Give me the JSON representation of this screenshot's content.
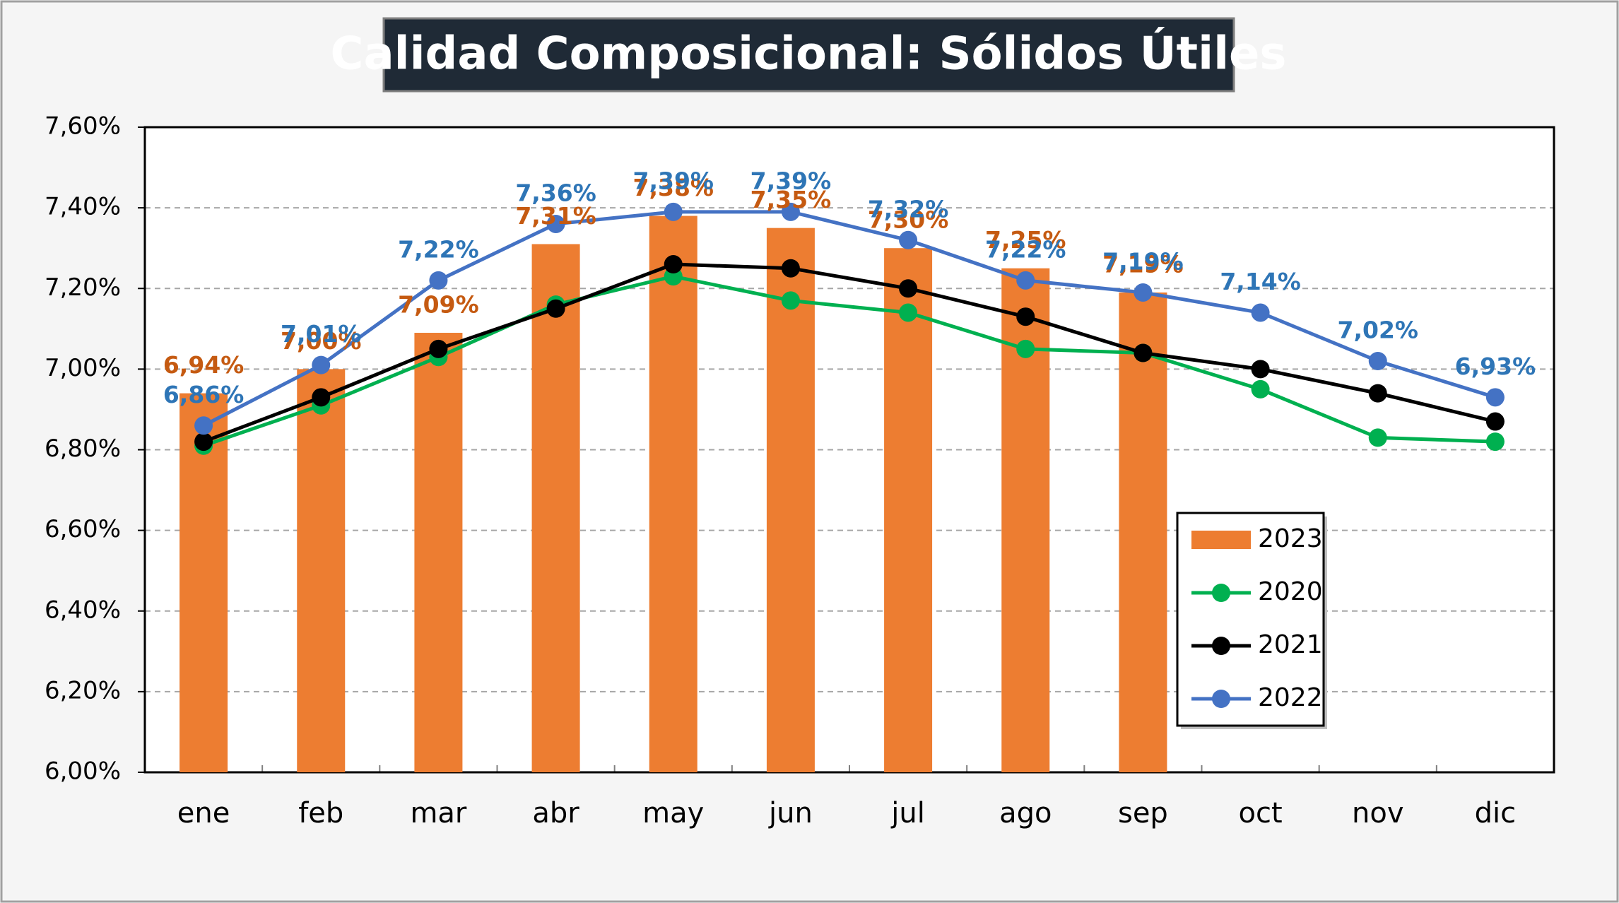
{
  "chart_data": {
    "type": "bar_line",
    "title": "Calidad Composicional: Sólidos Útiles",
    "categories": [
      "ene",
      "feb",
      "mar",
      "abr",
      "may",
      "jun",
      "jul",
      "ago",
      "sep",
      "oct",
      "nov",
      "dic"
    ],
    "series": [
      {
        "name": "2023",
        "type": "bar",
        "color": "#ed7d31",
        "label_color": "#c55a11",
        "values": [
          6.94,
          7.0,
          7.09,
          7.31,
          7.38,
          7.35,
          7.3,
          7.25,
          7.19,
          null,
          null,
          null
        ],
        "value_labels": [
          "6,94%",
          "7,00%",
          "7,09%",
          "7,31%",
          "7,38%",
          "7,35%",
          "7,30%",
          "7,25%",
          "7,19%",
          null,
          null,
          null
        ]
      },
      {
        "name": "2020",
        "type": "line",
        "color": "#00b050",
        "values": [
          6.81,
          6.91,
          7.03,
          7.16,
          7.23,
          7.17,
          7.14,
          7.05,
          7.04,
          6.95,
          6.83,
          6.82
        ]
      },
      {
        "name": "2021",
        "type": "line",
        "color": "#000000",
        "values": [
          6.82,
          6.93,
          7.05,
          7.15,
          7.26,
          7.25,
          7.2,
          7.13,
          7.04,
          7.0,
          6.94,
          6.87
        ]
      },
      {
        "name": "2022",
        "type": "line",
        "color": "#4472c4",
        "label_color": "#2e75b6",
        "values": [
          6.86,
          7.01,
          7.22,
          7.36,
          7.39,
          7.39,
          7.32,
          7.22,
          7.19,
          7.14,
          7.02,
          6.93
        ],
        "value_labels": [
          "6,86%",
          "7,01%",
          "7,22%",
          "7,36%",
          "7,39%",
          "7,39%",
          "7,32%",
          "7,22%",
          "7,19%",
          "7,14%",
          "7,02%",
          "6,93%"
        ]
      }
    ],
    "ylim": [
      6.0,
      7.6
    ],
    "yticks": [
      {
        "value": 6.0,
        "label": "6,00%"
      },
      {
        "value": 6.2,
        "label": "6,20%"
      },
      {
        "value": 6.4,
        "label": "6,40%"
      },
      {
        "value": 6.6,
        "label": "6,60%"
      },
      {
        "value": 6.8,
        "label": "6,80%"
      },
      {
        "value": 7.0,
        "label": "7,00%"
      },
      {
        "value": 7.2,
        "label": "7,20%"
      },
      {
        "value": 7.4,
        "label": "7,40%"
      },
      {
        "value": 7.6,
        "label": "7,60%"
      }
    ],
    "grid": true
  }
}
